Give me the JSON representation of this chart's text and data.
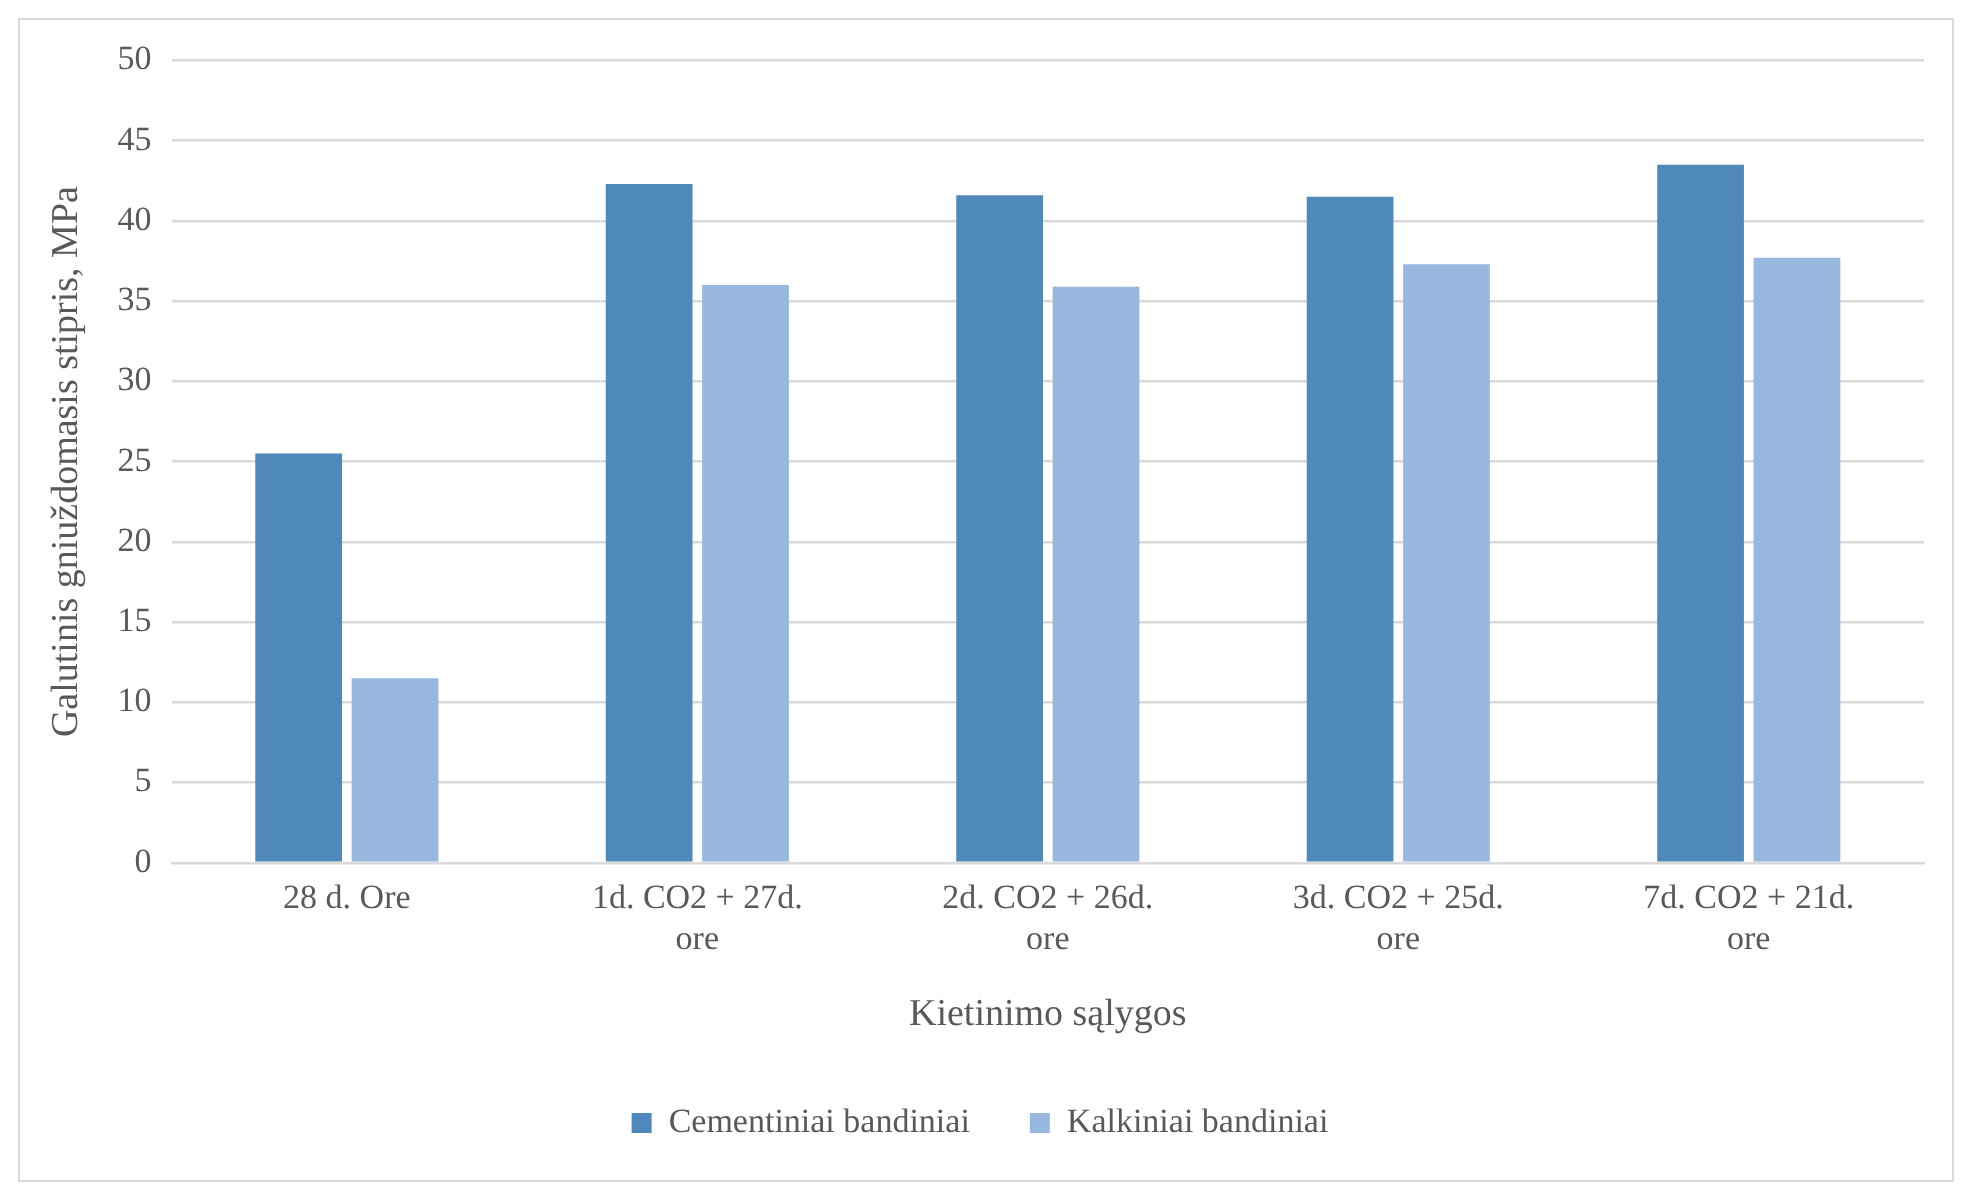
{
  "chart_data": {
    "type": "bar",
    "xlabel": "Kietinimo sąlygos",
    "ylabel": "Galutinis gniuždomasis stipris, MPa",
    "categories": [
      "28 d. Ore",
      "1d. CO2 + 27d. ore",
      "2d. CO2 + 26d. ore",
      "3d. CO2 + 25d. ore",
      "7d. CO2 + 21d. ore"
    ],
    "series": [
      {
        "name": "Cementiniai bandiniai",
        "color": "#4f88bb",
        "values": [
          25.5,
          42.3,
          41.6,
          41.5,
          43.5
        ]
      },
      {
        "name": "Kalkiniai bandiniai",
        "color": "#98b8e0",
        "values": [
          11.5,
          36.0,
          35.9,
          37.3,
          37.7
        ]
      }
    ],
    "ylim": [
      0,
      50
    ],
    "yticks": [
      0,
      5,
      10,
      15,
      20,
      25,
      30,
      35,
      40,
      45,
      50
    ],
    "grid": "y",
    "legend": "bottom"
  }
}
